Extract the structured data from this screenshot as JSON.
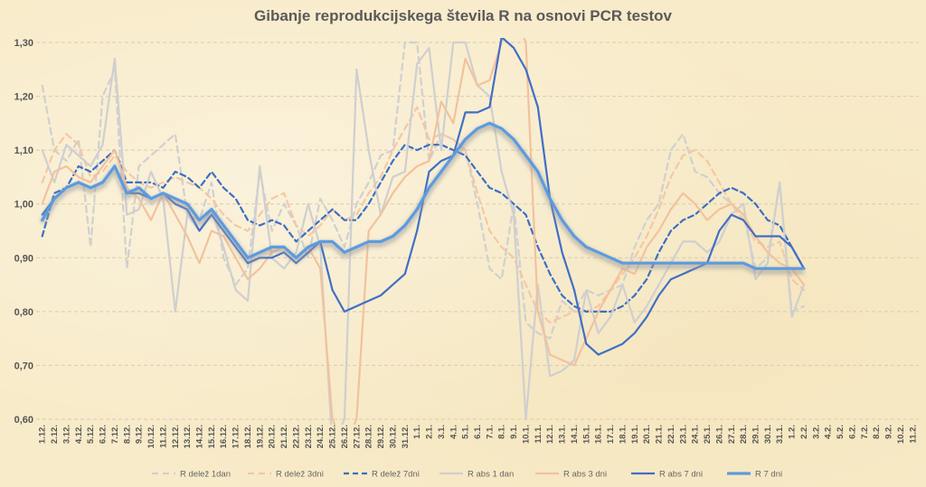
{
  "chart_data": {
    "type": "line",
    "title": "Gibanje reprodukcijskega števila R na osnovi PCR testov",
    "xlabel": "",
    "ylabel": "",
    "ylim": [
      0.6,
      1.3
    ],
    "yticks": [
      "0,60",
      "0,70",
      "0,80",
      "0,90",
      "1,00",
      "1,10",
      "1,20",
      "1,30"
    ],
    "grid": "horizontal dashed",
    "legend_position": "bottom",
    "categories": [
      "1.12.",
      "2.12.",
      "3.12.",
      "4.12.",
      "5.12.",
      "6.12.",
      "7.12.",
      "8.12.",
      "9.12.",
      "10.12.",
      "11.12.",
      "12.12.",
      "13.12.",
      "14.12.",
      "15.12.",
      "16.12.",
      "17.12.",
      "18.12.",
      "19.12.",
      "20.12.",
      "21.12.",
      "22.12.",
      "23.12.",
      "24.12.",
      "25.12.",
      "26.12.",
      "27.12.",
      "28.12.",
      "29.12.",
      "30.12.",
      "31.12.",
      "1.1.",
      "2.1.",
      "3.1.",
      "4.1.",
      "5.1.",
      "6.1.",
      "7.1.",
      "8.1.",
      "9.1.",
      "10.1.",
      "11.1.",
      "12.1.",
      "13.1.",
      "14.1.",
      "15.1.",
      "16.1.",
      "17.1.",
      "18.1.",
      "19.1.",
      "20.1.",
      "21.1.",
      "22.1.",
      "23.1.",
      "24.1.",
      "25.1.",
      "26.1.",
      "27.1.",
      "28.1.",
      "29.1.",
      "30.1.",
      "31.1.",
      "1.2.",
      "2.2.",
      "3.2.",
      "4.2.",
      "5.2.",
      "6.2.",
      "7.2.",
      "8.2.",
      "9.2.",
      "10.2.",
      "11.2."
    ],
    "series": [
      {
        "name": "R delež 1dan",
        "color": "#d0d0d0",
        "dash": "7,5",
        "width": 2.2,
        "values": [
          1.22,
          1.1,
          1.08,
          1.12,
          0.92,
          1.2,
          1.25,
          0.88,
          1.07,
          1.09,
          1.11,
          1.13,
          0.98,
          0.97,
          1.04,
          0.9,
          0.85,
          0.88,
          1.06,
          0.95,
          1.0,
          0.96,
          0.9,
          1.01,
          0.97,
          0.92,
          1.0,
          1.04,
          1.09,
          1.1,
          1.3,
          1.3,
          1.08,
          1.13,
          1.12,
          1.1,
          1.0,
          0.88,
          0.86,
          1.0,
          0.78,
          0.76,
          0.75,
          0.82,
          0.8,
          0.84,
          0.83,
          0.84,
          0.85,
          0.92,
          0.97,
          1.0,
          1.1,
          1.13,
          1.06,
          1.05,
          1.02,
          1.0,
          0.98,
          0.88,
          0.9,
          1.04,
          0.8,
          0.81,
          null,
          null,
          null,
          null,
          null,
          null,
          null,
          null,
          null
        ]
      },
      {
        "name": "R delež 3dni",
        "color": "#f4c8a4",
        "dash": "7,5",
        "width": 2.2,
        "values": [
          1.04,
          1.1,
          1.13,
          1.11,
          1.05,
          1.06,
          1.09,
          1.06,
          1.04,
          1.03,
          1.04,
          1.05,
          1.04,
          1.03,
          1.01,
          0.98,
          0.96,
          0.95,
          0.98,
          1.01,
          1.02,
          0.96,
          0.94,
          0.96,
          0.99,
          0.97,
          0.98,
          1.02,
          1.05,
          1.1,
          1.14,
          1.18,
          1.12,
          1.13,
          1.12,
          1.1,
          1.02,
          0.95,
          0.92,
          0.9,
          0.85,
          0.8,
          0.78,
          0.79,
          0.8,
          0.8,
          0.81,
          0.84,
          0.87,
          0.9,
          0.94,
          0.99,
          1.05,
          1.09,
          1.1,
          1.08,
          1.04,
          1.0,
          0.97,
          0.93,
          0.92,
          0.93,
          0.86,
          0.84,
          null,
          null,
          null,
          null,
          null,
          null,
          null,
          null,
          null
        ]
      },
      {
        "name": "R delež 7dni",
        "color": "#3b6fc4",
        "dash": "6,4",
        "width": 2.2,
        "values": [
          0.94,
          1.02,
          1.03,
          1.07,
          1.06,
          1.08,
          1.1,
          1.04,
          1.04,
          1.04,
          1.03,
          1.06,
          1.05,
          1.03,
          1.06,
          1.03,
          1.01,
          0.97,
          0.96,
          0.97,
          0.96,
          0.93,
          0.95,
          0.97,
          0.99,
          0.97,
          0.97,
          1.0,
          1.04,
          1.08,
          1.11,
          1.1,
          1.11,
          1.11,
          1.1,
          1.09,
          1.06,
          1.03,
          1.02,
          1.0,
          0.98,
          0.92,
          0.87,
          0.83,
          0.81,
          0.8,
          0.8,
          0.8,
          0.81,
          0.83,
          0.86,
          0.91,
          0.95,
          0.97,
          0.98,
          1.0,
          1.02,
          1.03,
          1.02,
          1.0,
          0.97,
          0.96,
          0.92,
          0.88,
          null,
          null,
          null,
          null,
          null,
          null,
          null,
          null,
          null
        ]
      },
      {
        "name": "R abs 1 dan",
        "color": "#cfcfcf",
        "dash": "",
        "width": 2.2,
        "values": [
          1.1,
          1.04,
          1.11,
          1.09,
          1.07,
          1.11,
          1.27,
          0.98,
          0.99,
          1.06,
          1.01,
          0.8,
          0.98,
          0.95,
          0.99,
          0.92,
          0.84,
          0.82,
          1.07,
          0.9,
          0.88,
          0.91,
          1.0,
          0.92,
          0.55,
          0.6,
          1.25,
          1.1,
          0.98,
          1.05,
          1.06,
          1.26,
          1.29,
          1.1,
          1.3,
          1.3,
          1.22,
          1.2,
          1.06,
          0.98,
          0.6,
          0.85,
          0.68,
          0.69,
          0.71,
          0.84,
          0.76,
          0.79,
          0.85,
          0.78,
          0.81,
          0.85,
          0.89,
          0.93,
          0.93,
          0.91,
          0.93,
          0.98,
          1.0,
          0.86,
          0.89,
          1.04,
          0.79,
          0.85,
          null,
          null,
          null,
          null,
          null,
          null,
          null,
          null,
          null
        ]
      },
      {
        "name": "R abs 3 dni",
        "color": "#f2c29c",
        "dash": "",
        "width": 2.2,
        "values": [
          1.0,
          1.06,
          1.07,
          1.05,
          1.04,
          1.07,
          1.1,
          1.03,
          1.01,
          0.97,
          1.02,
          0.98,
          0.94,
          0.89,
          0.95,
          0.94,
          0.9,
          0.86,
          0.88,
          0.91,
          0.92,
          0.9,
          0.92,
          0.88,
          0.6,
          0.55,
          0.6,
          0.95,
          0.98,
          1.02,
          1.05,
          1.07,
          1.08,
          1.19,
          1.15,
          1.27,
          1.22,
          1.23,
          1.3,
          1.35,
          1.3,
          0.8,
          0.72,
          0.71,
          0.7,
          0.75,
          0.8,
          0.84,
          0.88,
          0.87,
          0.92,
          0.95,
          0.99,
          1.02,
          1.0,
          0.97,
          0.99,
          1.0,
          0.98,
          0.94,
          0.91,
          0.89,
          0.88,
          0.85,
          null,
          null,
          null,
          null,
          null,
          null,
          null,
          null,
          null
        ]
      },
      {
        "name": "R abs 7 dni",
        "color": "#3f6fc7",
        "dash": "",
        "width": 2.2,
        "values": [
          0.98,
          1.01,
          1.03,
          1.04,
          1.03,
          1.04,
          1.07,
          1.02,
          1.02,
          1.01,
          1.02,
          1.0,
          0.99,
          0.95,
          0.98,
          0.95,
          0.92,
          0.89,
          0.9,
          0.9,
          0.91,
          0.89,
          0.91,
          0.93,
          0.84,
          0.8,
          0.81,
          0.82,
          0.83,
          0.85,
          0.87,
          0.95,
          1.06,
          1.08,
          1.09,
          1.17,
          1.17,
          1.18,
          1.31,
          1.29,
          1.25,
          1.18,
          1.01,
          0.91,
          0.84,
          0.74,
          0.72,
          0.73,
          0.74,
          0.76,
          0.79,
          0.83,
          0.86,
          0.87,
          0.88,
          0.89,
          0.95,
          0.98,
          0.97,
          0.94,
          0.94,
          0.94,
          0.92,
          0.88,
          null,
          null,
          null,
          null,
          null,
          null,
          null,
          null,
          null
        ]
      },
      {
        "name": "R 7 dni",
        "color": "#5b9be0",
        "dash": "",
        "width": 3.2,
        "values": [
          0.97,
          1.01,
          1.03,
          1.04,
          1.03,
          1.04,
          1.07,
          1.02,
          1.03,
          1.01,
          1.02,
          1.01,
          1.0,
          0.97,
          0.99,
          0.96,
          0.93,
          0.9,
          0.91,
          0.92,
          0.92,
          0.9,
          0.92,
          0.93,
          0.93,
          0.91,
          0.92,
          0.93,
          0.93,
          0.94,
          0.96,
          0.99,
          1.03,
          1.06,
          1.09,
          1.12,
          1.14,
          1.15,
          1.14,
          1.12,
          1.09,
          1.06,
          1.01,
          0.97,
          0.94,
          0.92,
          0.91,
          0.9,
          0.89,
          0.89,
          0.89,
          0.89,
          0.89,
          0.89,
          0.89,
          0.89,
          0.89,
          0.89,
          0.89,
          0.88,
          0.88,
          0.88,
          0.88,
          0.88,
          null,
          null,
          null,
          null,
          null,
          null,
          null,
          null,
          null
        ]
      }
    ]
  }
}
